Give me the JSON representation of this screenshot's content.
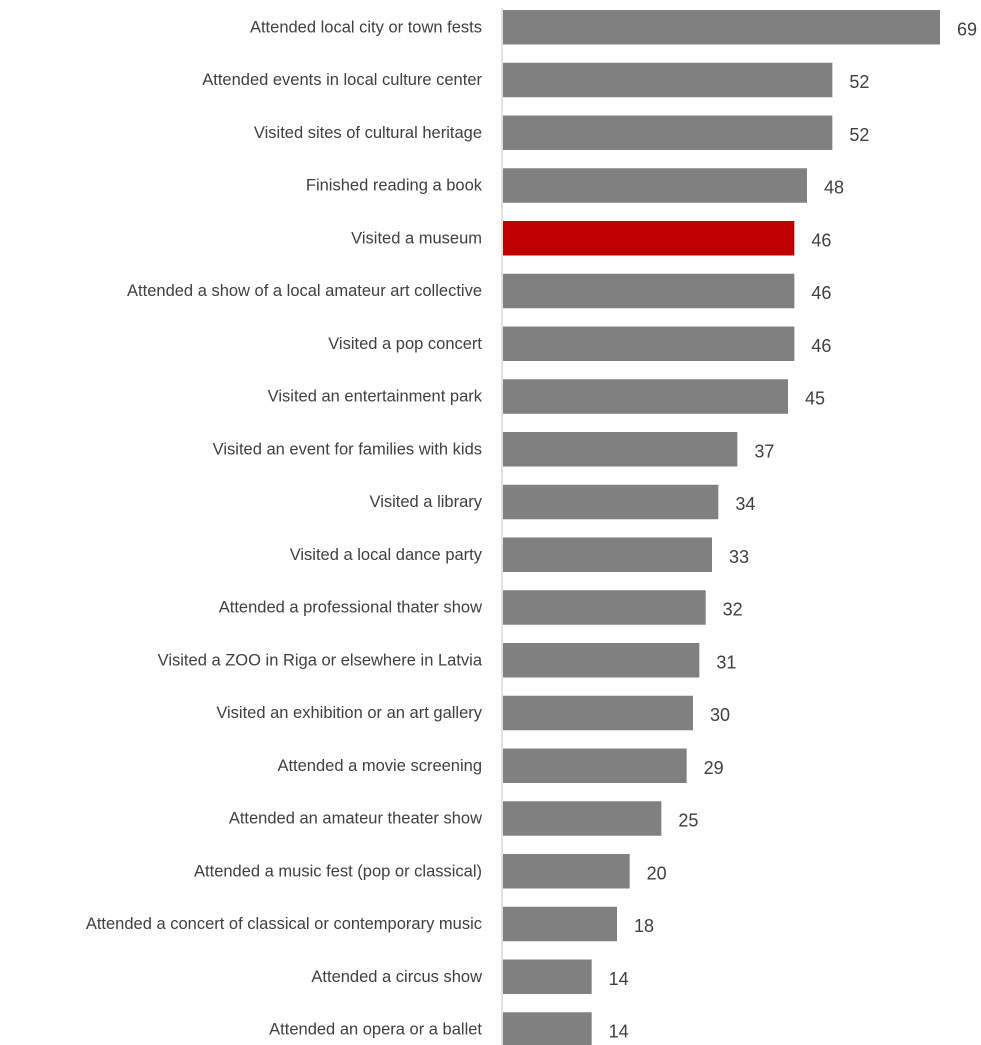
{
  "chart_data": {
    "type": "bar",
    "orientation": "horizontal",
    "categories": [
      "Attended local city or town fests",
      "Attended events in local culture center",
      "Visited sites of cultural heritage",
      "Finished reading a book",
      "Visited a museum",
      "Attended a show of a local amateur art collective",
      "Visited a pop concert",
      "Visited an entertainment park",
      "Visited an event for families with kids",
      "Visited a library",
      "Visited a local dance party",
      "Attended a professional thater show",
      "Visited a ZOO in Riga or elsewhere in Latvia",
      "Visited an exhibition or an art gallery",
      "Attended a movie screening",
      "Attended an amateur theater show",
      "Attended a music fest (pop or classical)",
      "Attended a concert of classical or contemporary music",
      "Attended a circus show",
      "Attended an opera or a ballet"
    ],
    "values": [
      69,
      52,
      52,
      48,
      46,
      46,
      46,
      45,
      37,
      34,
      33,
      32,
      31,
      30,
      29,
      25,
      20,
      18,
      14,
      14
    ],
    "value_labels": [
      "69",
      "52",
      "52",
      "48",
      "46",
      "46",
      "46",
      "45",
      "37",
      "34",
      "33",
      "32",
      "31",
      "30",
      "29",
      "25",
      "20",
      "18",
      "14",
      "14"
    ],
    "highlight_category": "Visited a museum",
    "colors": {
      "bar": "#808080",
      "highlight": "#c00000",
      "axis": "#d9d9d9",
      "text": "#404040"
    },
    "title": "",
    "xlabel": "",
    "ylabel": "",
    "xlim": [
      0,
      69
    ],
    "grid": false,
    "legend": "none"
  }
}
